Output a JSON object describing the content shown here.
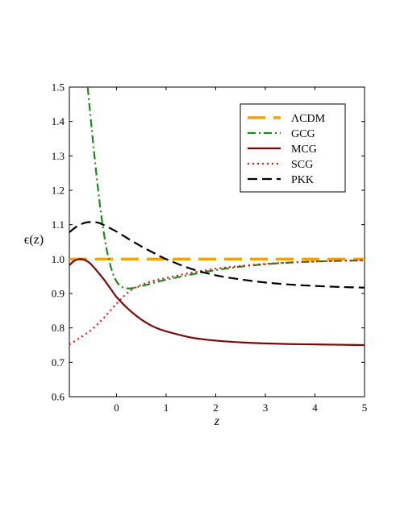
{
  "chart_data": {
    "type": "line",
    "xlabel": "z",
    "ylabel": "ϵ(z)",
    "xlim": [
      -0.95,
      5
    ],
    "ylim": [
      0.6,
      1.5
    ],
    "xticks": [
      "0",
      "1",
      "2",
      "3",
      "4",
      "5"
    ],
    "xtick_values": [
      0,
      1,
      2,
      3,
      4,
      5
    ],
    "yticks": [
      "0.6",
      "0.7",
      "0.8",
      "0.9",
      "1.0",
      "1.1",
      "1.2",
      "1.3",
      "1.4",
      "1.5"
    ],
    "ytick_values": [
      0.6,
      0.7,
      0.8,
      0.9,
      1.0,
      1.1,
      1.2,
      1.3,
      1.4,
      1.5
    ],
    "legend_position": "top-right",
    "series": [
      {
        "name": "ΛCDM",
        "color": "#f5a100",
        "dash": "long-dash",
        "x": [
          -0.95,
          0,
          1,
          2,
          3,
          4,
          5
        ],
        "y": [
          1.0,
          1.0,
          1.0,
          1.0,
          1.0,
          1.0,
          1.0
        ]
      },
      {
        "name": "GCG",
        "color": "#1b8a1b",
        "dash": "dash-dot",
        "x": [
          -0.58,
          -0.5,
          -0.4,
          -0.3,
          -0.2,
          -0.1,
          0,
          0.1,
          0.2,
          0.3,
          0.4,
          0.6,
          0.8,
          1.0,
          1.5,
          2.0,
          2.5,
          3.0,
          3.5,
          4.0,
          4.5,
          5.0
        ],
        "y": [
          1.5,
          1.38,
          1.24,
          1.12,
          1.03,
          0.97,
          0.935,
          0.92,
          0.915,
          0.915,
          0.918,
          0.925,
          0.933,
          0.94,
          0.955,
          0.968,
          0.978,
          0.985,
          0.99,
          0.993,
          0.995,
          0.996
        ]
      },
      {
        "name": "MCG",
        "color": "#7a0a0a",
        "dash": "solid",
        "x": [
          -0.95,
          -0.85,
          -0.75,
          -0.65,
          -0.55,
          -0.45,
          -0.35,
          -0.25,
          -0.1,
          0,
          0.2,
          0.4,
          0.6,
          0.8,
          1.0,
          1.5,
          2.0,
          2.5,
          3.0,
          3.5,
          4.0,
          4.5,
          5.0
        ],
        "y": [
          0.982,
          0.995,
          1.0,
          0.998,
          0.99,
          0.975,
          0.958,
          0.94,
          0.91,
          0.89,
          0.86,
          0.835,
          0.815,
          0.8,
          0.79,
          0.772,
          0.763,
          0.758,
          0.755,
          0.753,
          0.752,
          0.751,
          0.75
        ]
      },
      {
        "name": "SCG",
        "color": "#ee1111",
        "dash": "dotted",
        "x": [
          -0.95,
          -0.75,
          -0.5,
          -0.25,
          0,
          0.25,
          0.5,
          0.75,
          1.0,
          1.5,
          2.0,
          2.5,
          3.0,
          3.5,
          4.0,
          4.5,
          5.0
        ],
        "y": [
          0.752,
          0.77,
          0.795,
          0.83,
          0.87,
          0.905,
          0.925,
          0.937,
          0.945,
          0.96,
          0.972,
          0.98,
          0.986,
          0.99,
          0.993,
          0.995,
          0.997
        ]
      },
      {
        "name": "PKK",
        "color": "#000000",
        "dash": "dashed",
        "x": [
          -0.95,
          -0.8,
          -0.65,
          -0.5,
          -0.35,
          -0.2,
          0,
          0.25,
          0.5,
          0.75,
          1.0,
          1.5,
          2.0,
          2.5,
          3.0,
          3.5,
          4.0,
          4.5,
          5.0
        ],
        "y": [
          1.078,
          1.095,
          1.105,
          1.108,
          1.105,
          1.095,
          1.08,
          1.058,
          1.037,
          1.018,
          1.0,
          0.972,
          0.953,
          0.941,
          0.932,
          0.926,
          0.922,
          0.919,
          0.917
        ]
      }
    ]
  }
}
